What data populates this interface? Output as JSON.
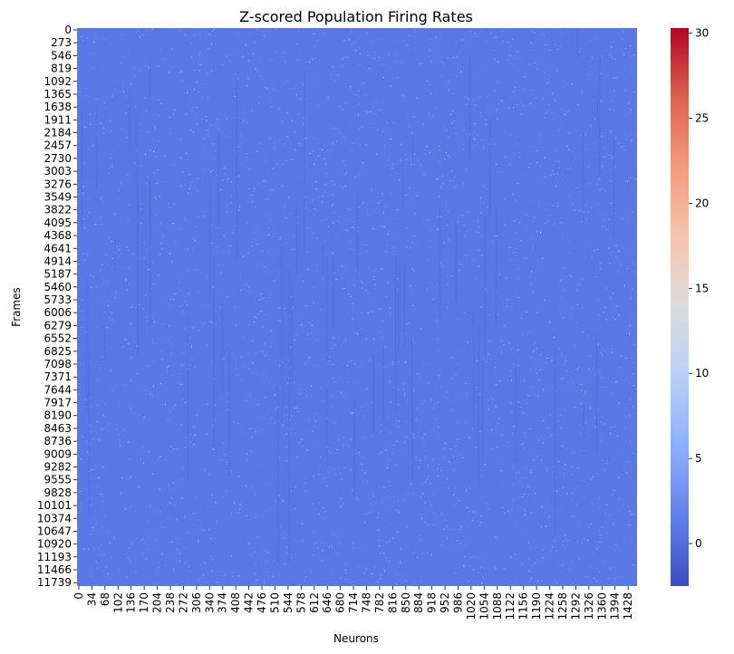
{
  "chart_data": {
    "type": "heatmap",
    "title": "Z-scored Population Firing Rates",
    "xlabel": "Neurons",
    "ylabel": "Frames",
    "x_ticks": [
      0,
      34,
      68,
      102,
      136,
      170,
      204,
      238,
      272,
      306,
      340,
      374,
      408,
      442,
      476,
      510,
      544,
      578,
      612,
      646,
      680,
      714,
      748,
      782,
      816,
      850,
      884,
      918,
      952,
      986,
      1020,
      1054,
      1088,
      1122,
      1156,
      1190,
      1224,
      1258,
      1292,
      1326,
      1360,
      1394,
      1428
    ],
    "y_ticks": [
      0,
      273,
      546,
      819,
      1092,
      1365,
      1638,
      1911,
      2184,
      2457,
      2730,
      3003,
      3276,
      3549,
      3822,
      4095,
      4368,
      4641,
      4914,
      5187,
      5460,
      5733,
      6006,
      6279,
      6552,
      6825,
      7098,
      7371,
      7644,
      7917,
      8190,
      8463,
      8736,
      9009,
      9282,
      9555,
      9828,
      10101,
      10374,
      10647,
      10920,
      11193,
      11466,
      11739
    ],
    "x_range": [
      0,
      1456
    ],
    "y_range": [
      0,
      11850
    ],
    "colormap": "coolwarm",
    "colorbar": {
      "min": -2.5,
      "max": 30.3,
      "ticks": [
        0,
        5,
        10,
        15,
        20,
        25,
        30
      ]
    },
    "dominant_value": -0.3,
    "dominant_color": "#5a78e4",
    "colorbar_stops": [
      {
        "v": -2.5,
        "color": "#3b4cc0"
      },
      {
        "v": 1.6,
        "color": "#6282ea"
      },
      {
        "v": 5.8,
        "color": "#8db0fe"
      },
      {
        "v": 9.9,
        "color": "#b8d0f9"
      },
      {
        "v": 14.0,
        "color": "#dddcdc"
      },
      {
        "v": 18.1,
        "color": "#f5c4ac"
      },
      {
        "v": 22.2,
        "color": "#f49a7b"
      },
      {
        "v": 26.3,
        "color": "#de604d"
      },
      {
        "v": 30.3,
        "color": "#b40426"
      }
    ]
  }
}
